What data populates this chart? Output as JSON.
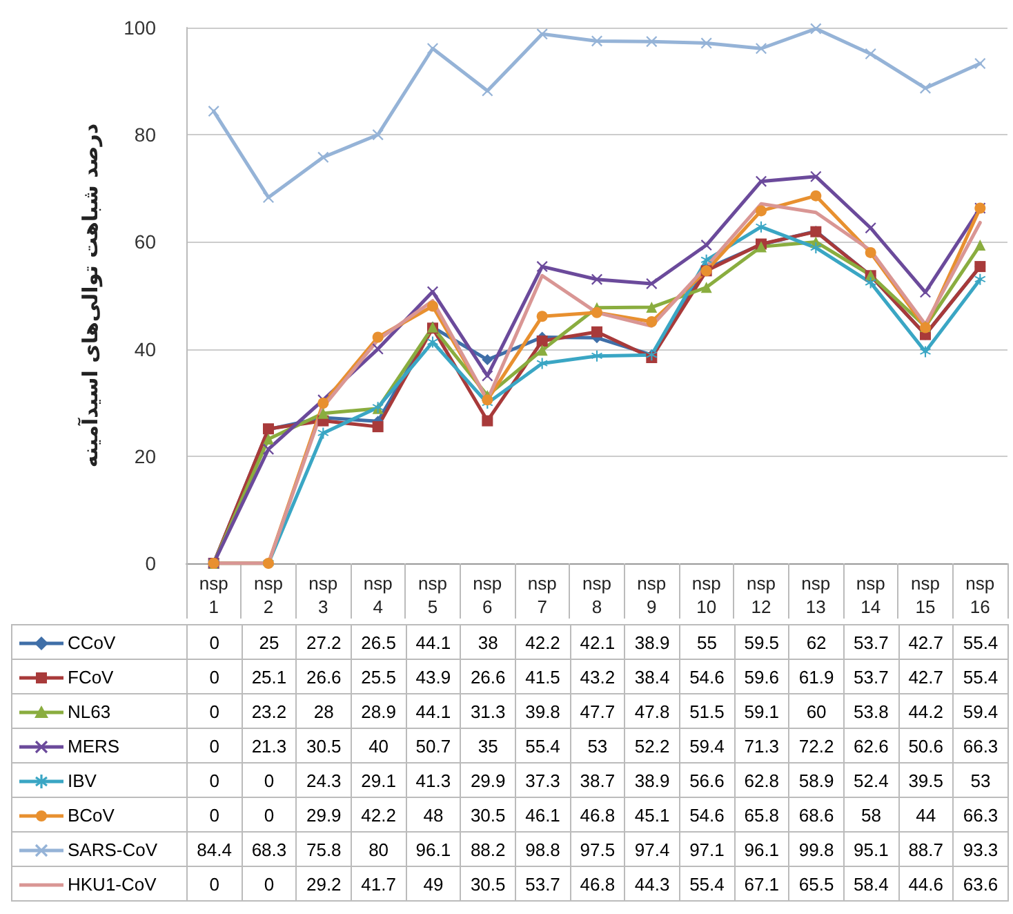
{
  "chart_data": {
    "type": "line",
    "ylabel": "درصد شباهت توالی‌های اسیدآمینه",
    "categories": [
      "nsp 1",
      "nsp 2",
      "nsp 3",
      "nsp 4",
      "nsp 5",
      "nsp 6",
      "nsp 7",
      "nsp 8",
      "nsp 9",
      "nsp 10",
      "nsp 12",
      "nsp 13",
      "nsp 14",
      "nsp 15",
      "nsp 16"
    ],
    "series": [
      {
        "name": "CCoV",
        "color": "#3f6fa8",
        "marker": "diamond",
        "values": [
          0,
          25,
          27.2,
          26.5,
          44.1,
          38,
          42.2,
          42.1,
          38.9,
          55,
          59.5,
          62,
          53.7,
          42.7,
          55.4
        ]
      },
      {
        "name": "FCoV",
        "color": "#a83a3a",
        "marker": "square",
        "values": [
          0,
          25.1,
          26.6,
          25.5,
          43.9,
          26.6,
          41.5,
          43.2,
          38.4,
          54.6,
          59.6,
          61.9,
          53.7,
          42.7,
          55.4
        ]
      },
      {
        "name": "NL63",
        "color": "#8aad3f",
        "marker": "triangle",
        "values": [
          0,
          23.2,
          28,
          28.9,
          44.1,
          31.3,
          39.8,
          47.7,
          47.8,
          51.5,
          59.1,
          60,
          53.8,
          44.2,
          59.4
        ]
      },
      {
        "name": "MERS",
        "color": "#6b4a9b",
        "marker": "cross",
        "values": [
          0,
          21.3,
          30.5,
          40,
          50.7,
          35,
          55.4,
          53,
          52.2,
          59.4,
          71.3,
          72.2,
          62.6,
          50.6,
          66.3
        ]
      },
      {
        "name": "IBV",
        "color": "#3aa6c4",
        "marker": "star",
        "values": [
          0,
          0,
          24.3,
          29.1,
          41.3,
          29.9,
          37.3,
          38.7,
          38.9,
          56.6,
          62.8,
          58.9,
          52.4,
          39.5,
          53
        ]
      },
      {
        "name": "BCoV",
        "color": "#e8902f",
        "marker": "circle",
        "values": [
          0,
          0,
          29.9,
          42.2,
          48,
          30.5,
          46.1,
          46.8,
          45.1,
          54.6,
          65.8,
          68.6,
          58,
          44,
          66.3
        ]
      },
      {
        "name": "SARS-CoV",
        "color": "#95b3d7",
        "marker": "cross",
        "values": [
          84.4,
          68.3,
          75.8,
          80,
          96.1,
          88.2,
          98.8,
          97.5,
          97.4,
          97.1,
          96.1,
          99.8,
          95.1,
          88.7,
          93.3
        ]
      },
      {
        "name": "HKU1-CoV",
        "color": "#d99694",
        "marker": "none",
        "values": [
          0,
          0,
          29.2,
          41.7,
          49,
          30.5,
          53.7,
          46.8,
          44.3,
          55.4,
          67.1,
          65.5,
          58.4,
          44.6,
          63.6
        ]
      }
    ],
    "ylim": [
      0,
      100
    ],
    "yticks": [
      0,
      20,
      40,
      60,
      80,
      100
    ],
    "grid": "y",
    "legend": "bottom",
    "data_labels": true,
    "line_style": "solid"
  }
}
